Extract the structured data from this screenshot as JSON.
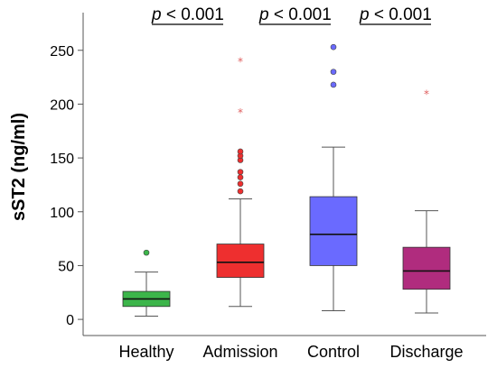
{
  "chart_data": {
    "type": "box",
    "ylabel": "sST2 (ng/ml)",
    "ylim": [
      -15,
      285
    ],
    "yticks": [
      0,
      50,
      100,
      150,
      200,
      250
    ],
    "grid": false,
    "categories": [
      "Healthy",
      "Admission",
      "Control",
      "Discharge"
    ],
    "boxes": [
      {
        "category": "Healthy",
        "whisker_low": 3,
        "q1": 12,
        "median": 19,
        "q3": 26,
        "whisker_high": 44,
        "fill": "#3cb54a",
        "outliers": [
          {
            "y": 62,
            "marker": "circle"
          }
        ]
      },
      {
        "category": "Admission",
        "whisker_low": 12,
        "q1": 39,
        "median": 53,
        "q3": 70,
        "whisker_high": 112,
        "fill": "#ee2f2f",
        "outliers": [
          {
            "y": 119,
            "marker": "circle"
          },
          {
            "y": 126,
            "marker": "circle"
          },
          {
            "y": 132,
            "marker": "circle"
          },
          {
            "y": 137,
            "marker": "circle"
          },
          {
            "y": 148,
            "marker": "circle"
          },
          {
            "y": 152,
            "marker": "circle"
          },
          {
            "y": 156,
            "marker": "circle"
          },
          {
            "y": 193,
            "marker": "star"
          },
          {
            "y": 240,
            "marker": "star"
          }
        ]
      },
      {
        "category": "Control",
        "whisker_low": 8,
        "q1": 50,
        "median": 79,
        "q3": 114,
        "whisker_high": 160,
        "fill": "#6a6aff",
        "outliers": [
          {
            "y": 218,
            "marker": "circle"
          },
          {
            "y": 230,
            "marker": "circle"
          },
          {
            "y": 253,
            "marker": "circle"
          }
        ]
      },
      {
        "category": "Discharge",
        "whisker_low": 6,
        "q1": 28,
        "median": 45,
        "q3": 67,
        "whisker_high": 101,
        "fill": "#b02c7e",
        "outliers": [
          {
            "y": 210,
            "marker": "star"
          }
        ]
      }
    ],
    "annotations": [
      {
        "label": "p < 0.001",
        "from": "Healthy",
        "to": "Admission"
      },
      {
        "label": "p < 0.001",
        "from": "Admission",
        "to": "Control"
      },
      {
        "label": "p < 0.001",
        "from": "Control",
        "to": "Discharge"
      }
    ]
  }
}
